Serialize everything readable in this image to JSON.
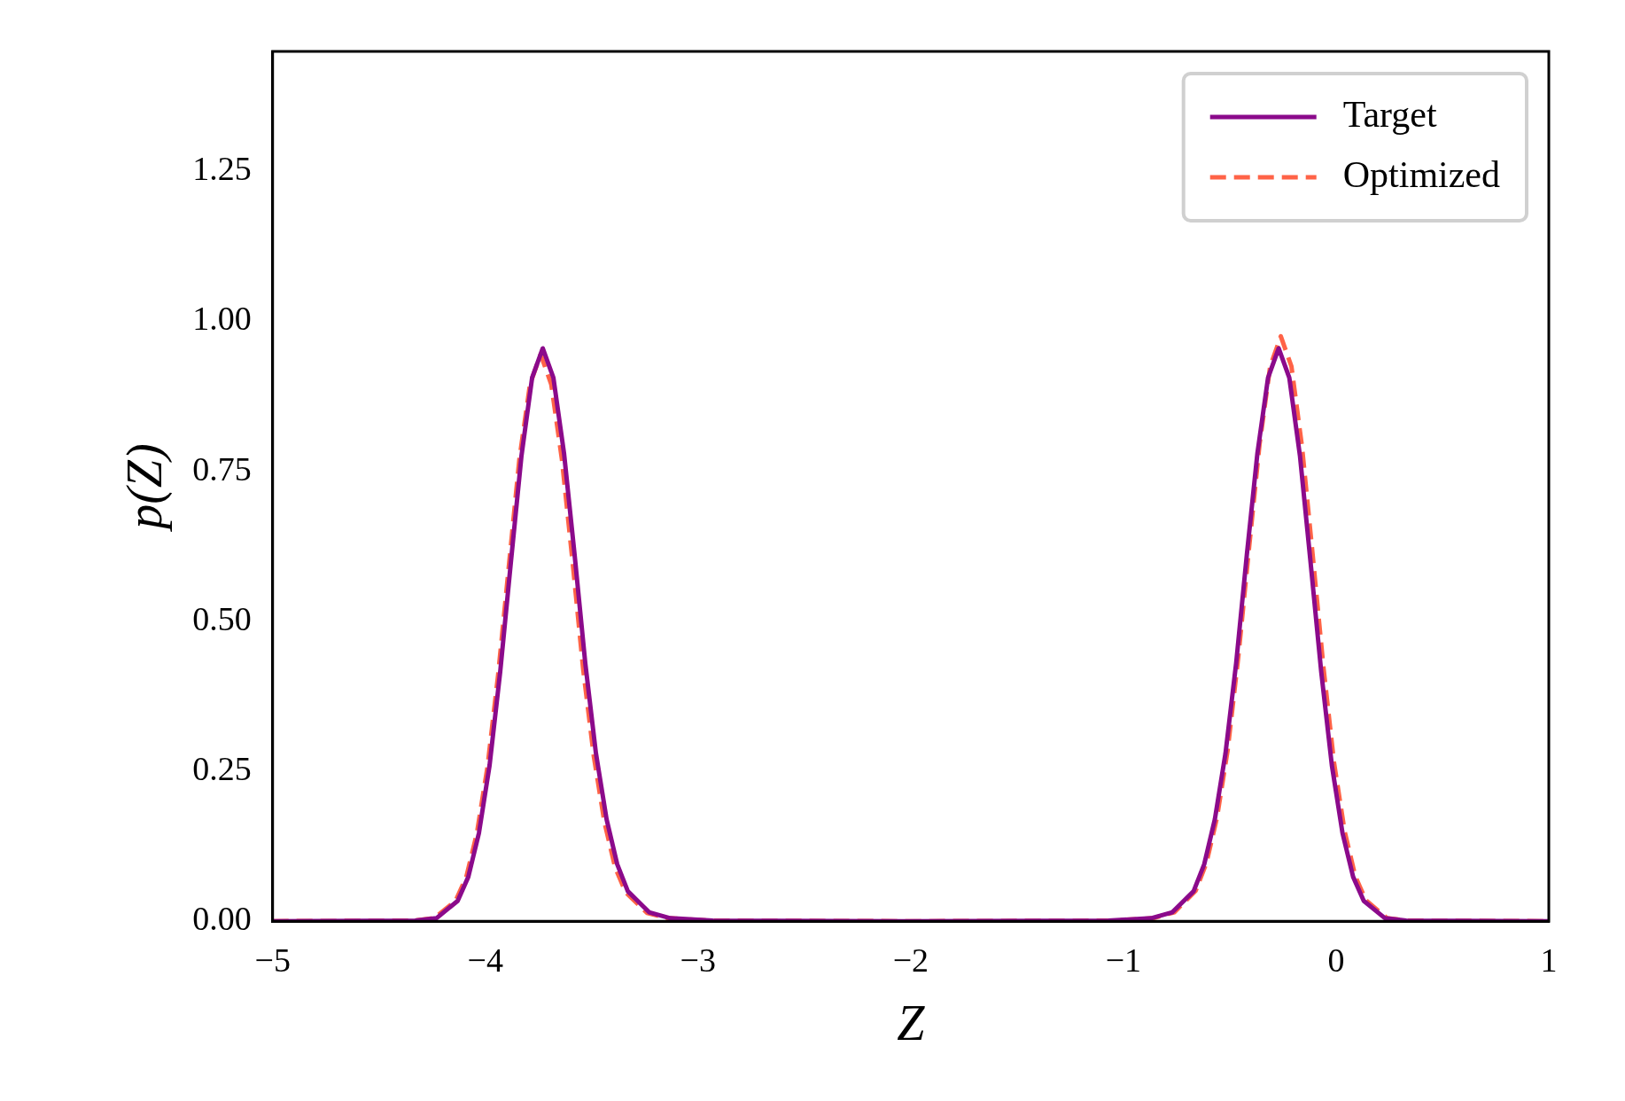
{
  "chart_data": {
    "type": "line",
    "xlabel": "Z",
    "ylabel": "p(Z)",
    "xlim": [
      -5,
      1
    ],
    "ylim": [
      0,
      1.45
    ],
    "xticks": [
      {
        "value": -5,
        "label": "−5"
      },
      {
        "value": -4,
        "label": "−4"
      },
      {
        "value": -3,
        "label": "−3"
      },
      {
        "value": -2,
        "label": "−2"
      },
      {
        "value": -1,
        "label": "−1"
      },
      0,
      1
    ],
    "yticks": [
      {
        "value": 0,
        "label": "0.00"
      },
      {
        "value": 0.25,
        "label": "0.25"
      },
      {
        "value": 0.5,
        "label": "0.50"
      },
      {
        "value": 0.75,
        "label": "0.75"
      },
      {
        "value": 1,
        "label": "1.00"
      },
      {
        "value": 1.25,
        "label": "1.25"
      }
    ],
    "grid": false,
    "legend": "top right",
    "marker": "none",
    "series": [
      {
        "name": "Target",
        "color": "#8b0a8b",
        "line_style": "solid",
        "x": [
          -5,
          -4.33,
          -4.23,
          -4.13,
          -4.08,
          -4.03,
          -3.98,
          -3.93,
          -3.88,
          -3.83,
          -3.78,
          -3.73,
          -3.68,
          -3.63,
          -3.58,
          -3.53,
          -3.48,
          -3.43,
          -3.38,
          -3.33,
          -3.23,
          -3.13,
          -2.93,
          -2,
          -1.07,
          -0.87,
          -0.77,
          -0.67,
          -0.62,
          -0.57,
          -0.52,
          -0.47,
          -0.42,
          -0.37,
          -0.32,
          -0.27,
          -0.22,
          -0.17,
          -0.12,
          -0.07,
          -0.02,
          0.03,
          0.08,
          0.13,
          0.23,
          0.33,
          1
        ],
        "values": [
          0,
          0.001,
          0.005,
          0.034,
          0.074,
          0.147,
          0.26,
          0.416,
          0.598,
          0.776,
          0.906,
          0.955,
          0.906,
          0.78,
          0.61,
          0.43,
          0.28,
          0.17,
          0.095,
          0.05,
          0.015,
          0.005,
          0.001,
          0,
          0.001,
          0.005,
          0.015,
          0.05,
          0.095,
          0.17,
          0.28,
          0.43,
          0.61,
          0.78,
          0.906,
          0.955,
          0.906,
          0.776,
          0.598,
          0.416,
          0.26,
          0.147,
          0.074,
          0.034,
          0.005,
          0.001,
          0
        ]
      },
      {
        "name": "Optimized",
        "color": "#ff6347",
        "line_style": "dashed",
        "x": [
          -5,
          -4.34,
          -4.24,
          -4.14,
          -4.09,
          -4.04,
          -3.99,
          -3.94,
          -3.89,
          -3.84,
          -3.79,
          -3.74,
          -3.69,
          -3.64,
          -3.59,
          -3.54,
          -3.49,
          -3.44,
          -3.39,
          -3.34,
          -3.24,
          -3.14,
          -2.94,
          -2,
          -1.06,
          -0.86,
          -0.76,
          -0.66,
          -0.61,
          -0.56,
          -0.51,
          -0.46,
          -0.41,
          -0.36,
          -0.31,
          -0.26,
          -0.21,
          -0.16,
          -0.11,
          -0.06,
          -0.01,
          0.04,
          0.09,
          0.14,
          0.24,
          0.34,
          1
        ],
        "values": [
          0,
          0.001,
          0.005,
          0.034,
          0.073,
          0.146,
          0.257,
          0.41,
          0.59,
          0.77,
          0.895,
          0.945,
          0.895,
          0.77,
          0.6,
          0.42,
          0.275,
          0.165,
          0.09,
          0.048,
          0.014,
          0.005,
          0.001,
          0,
          0.001,
          0.005,
          0.015,
          0.051,
          0.097,
          0.173,
          0.285,
          0.44,
          0.62,
          0.795,
          0.925,
          0.975,
          0.925,
          0.79,
          0.61,
          0.425,
          0.265,
          0.15,
          0.075,
          0.035,
          0.005,
          0.001,
          0
        ]
      }
    ]
  }
}
